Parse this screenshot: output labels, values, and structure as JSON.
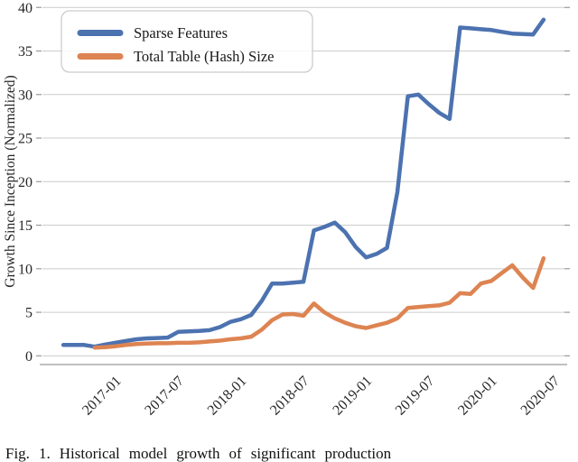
{
  "figure": {
    "caption": "Fig. 1. Historical model growth of significant production",
    "background": "#ffffff"
  },
  "chart_data": {
    "type": "line",
    "title": "",
    "xlabel": "",
    "ylabel": "Growth Since Inception (Normalized)",
    "ylim": [
      -1,
      40
    ],
    "yticks": [
      0,
      5,
      10,
      15,
      20,
      25,
      30,
      35,
      40
    ],
    "xlim": [
      "2016-06",
      "2020-08"
    ],
    "xticks": [
      "2017-01",
      "2017-07",
      "2018-01",
      "2018-07",
      "2019-01",
      "2019-07",
      "2020-01",
      "2020-07"
    ],
    "grid": "horizontal",
    "grid_color": "#cccccc",
    "spine_color": "#c0c0c0",
    "tick_color": "#999999",
    "legend_position": "upper-left",
    "series": [
      {
        "name": "Sparse Features",
        "color": "#4C72B0",
        "points": [
          [
            "2016-08",
            1.25
          ],
          [
            "2016-09",
            1.25
          ],
          [
            "2016-10",
            1.25
          ],
          [
            "2016-11",
            1.05
          ],
          [
            "2016-12",
            1.3
          ],
          [
            "2017-01",
            1.5
          ],
          [
            "2017-02",
            1.7
          ],
          [
            "2017-03",
            1.9
          ],
          [
            "2017-04",
            2.0
          ],
          [
            "2017-05",
            2.05
          ],
          [
            "2017-06",
            2.1
          ],
          [
            "2017-07",
            2.75
          ],
          [
            "2017-08",
            2.8
          ],
          [
            "2017-09",
            2.85
          ],
          [
            "2017-10",
            2.95
          ],
          [
            "2017-11",
            3.3
          ],
          [
            "2017-12",
            3.9
          ],
          [
            "2018-01",
            4.2
          ],
          [
            "2018-02",
            4.7
          ],
          [
            "2018-03",
            6.3
          ],
          [
            "2018-04",
            8.3
          ],
          [
            "2018-05",
            8.3
          ],
          [
            "2018-06",
            8.4
          ],
          [
            "2018-07",
            8.5
          ],
          [
            "2018-08",
            14.4
          ],
          [
            "2018-09",
            14.8
          ],
          [
            "2018-10",
            15.3
          ],
          [
            "2018-11",
            14.2
          ],
          [
            "2018-12",
            12.5
          ],
          [
            "2019-01",
            11.3
          ],
          [
            "2019-02",
            11.7
          ],
          [
            "2019-03",
            12.4
          ],
          [
            "2019-04",
            18.8
          ],
          [
            "2019-05",
            29.8
          ],
          [
            "2019-06",
            30.0
          ],
          [
            "2019-07",
            28.9
          ],
          [
            "2019-08",
            27.9
          ],
          [
            "2019-09",
            27.2
          ],
          [
            "2019-10",
            37.7
          ],
          [
            "2019-11",
            37.6
          ],
          [
            "2019-12",
            37.5
          ],
          [
            "2020-01",
            37.4
          ],
          [
            "2020-02",
            37.2
          ],
          [
            "2020-03",
            37.0
          ],
          [
            "2020-04",
            36.95
          ],
          [
            "2020-05",
            36.9
          ],
          [
            "2020-06",
            38.6
          ]
        ]
      },
      {
        "name": "Total Table (Hash) Size",
        "color": "#DD8452",
        "points": [
          [
            "2016-11",
            0.95
          ],
          [
            "2016-12",
            1.0
          ],
          [
            "2017-01",
            1.1
          ],
          [
            "2017-02",
            1.25
          ],
          [
            "2017-03",
            1.35
          ],
          [
            "2017-04",
            1.4
          ],
          [
            "2017-05",
            1.45
          ],
          [
            "2017-06",
            1.45
          ],
          [
            "2017-07",
            1.5
          ],
          [
            "2017-08",
            1.5
          ],
          [
            "2017-09",
            1.55
          ],
          [
            "2017-10",
            1.65
          ],
          [
            "2017-11",
            1.75
          ],
          [
            "2017-12",
            1.9
          ],
          [
            "2018-01",
            2.0
          ],
          [
            "2018-02",
            2.2
          ],
          [
            "2018-03",
            3.0
          ],
          [
            "2018-04",
            4.1
          ],
          [
            "2018-05",
            4.75
          ],
          [
            "2018-06",
            4.8
          ],
          [
            "2018-07",
            4.6
          ],
          [
            "2018-08",
            6.0
          ],
          [
            "2018-09",
            5.0
          ],
          [
            "2018-10",
            4.3
          ],
          [
            "2018-11",
            3.8
          ],
          [
            "2018-12",
            3.4
          ],
          [
            "2019-01",
            3.2
          ],
          [
            "2019-02",
            3.5
          ],
          [
            "2019-03",
            3.8
          ],
          [
            "2019-04",
            4.3
          ],
          [
            "2019-05",
            5.5
          ],
          [
            "2019-06",
            5.6
          ],
          [
            "2019-07",
            5.7
          ],
          [
            "2019-08",
            5.8
          ],
          [
            "2019-09",
            6.1
          ],
          [
            "2019-10",
            7.2
          ],
          [
            "2019-11",
            7.1
          ],
          [
            "2019-12",
            8.3
          ],
          [
            "2020-01",
            8.6
          ],
          [
            "2020-02",
            9.5
          ],
          [
            "2020-03",
            10.4
          ],
          [
            "2020-04",
            9.0
          ],
          [
            "2020-05",
            7.8
          ],
          [
            "2020-06",
            11.2
          ]
        ]
      }
    ]
  }
}
